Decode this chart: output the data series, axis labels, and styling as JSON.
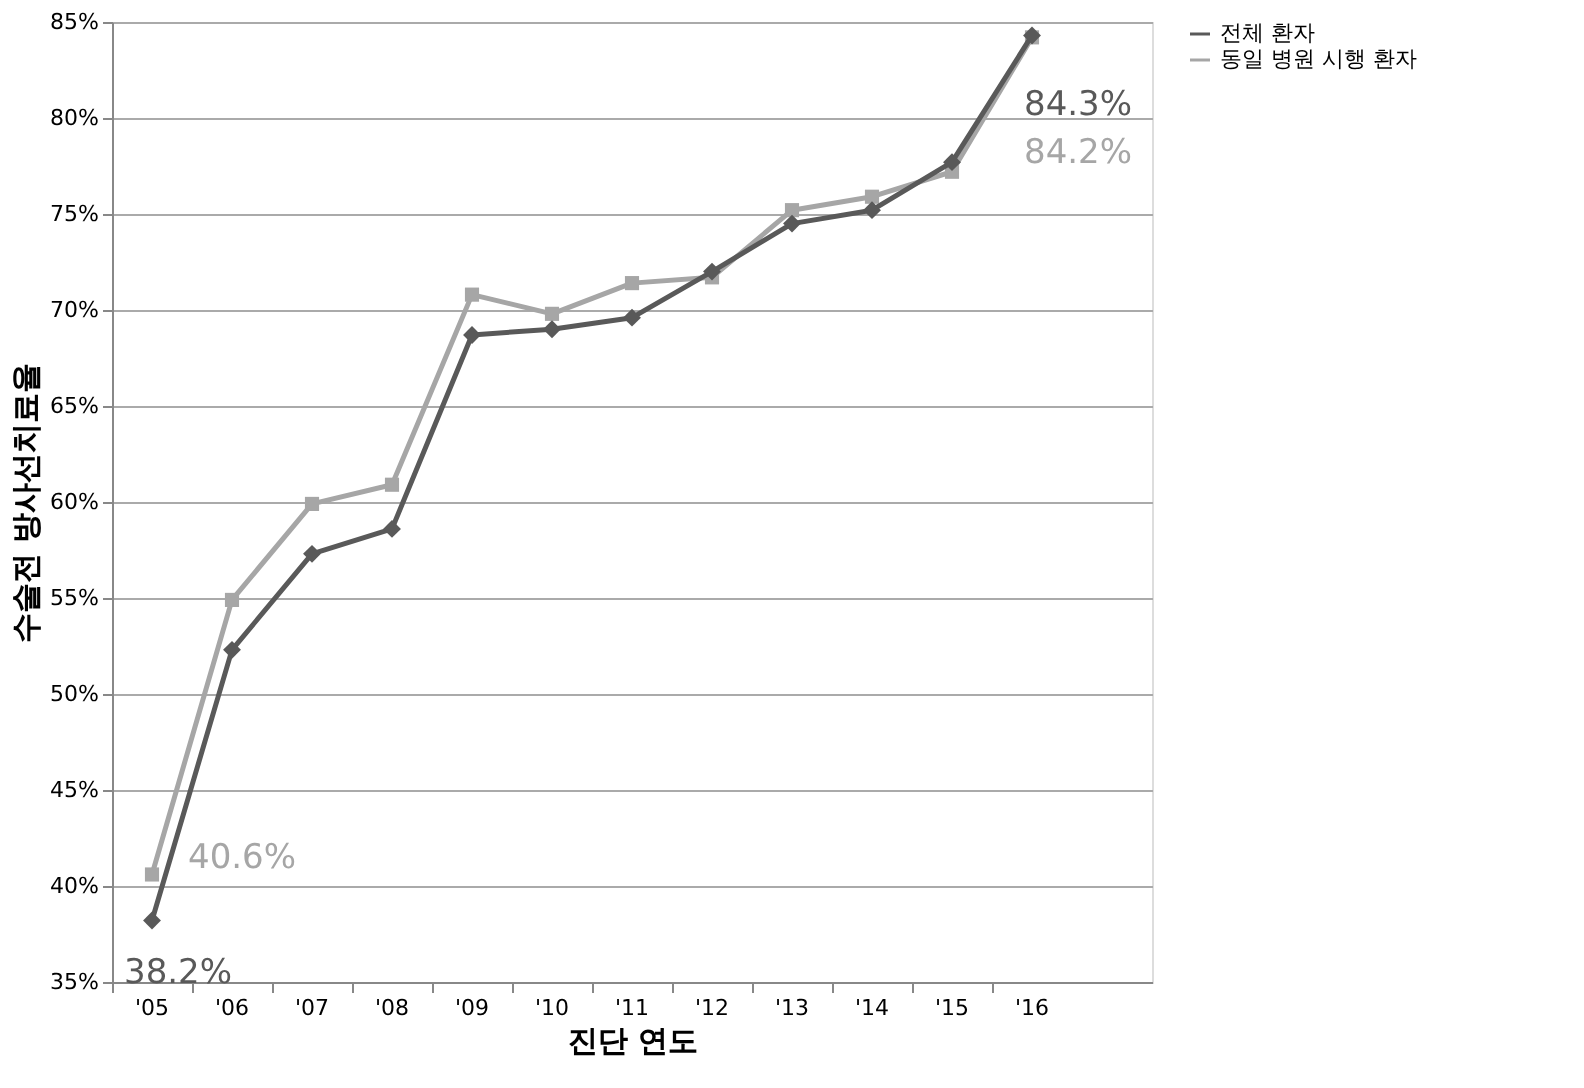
{
  "chart_data": {
    "type": "line",
    "xlabel": "진단 연도",
    "ylabel": "수술전 방사선치료율",
    "categories": [
      "'05",
      "'06",
      "'07",
      "'08",
      "'09",
      "'10",
      "'11",
      "'12",
      "'13",
      "'14",
      "'15",
      "'16"
    ],
    "series": [
      {
        "name": "전체 환자",
        "color": "#595959",
        "marker": "diamond",
        "values": [
          38.2,
          52.3,
          57.3,
          58.6,
          68.7,
          69.0,
          69.6,
          72.0,
          74.5,
          75.2,
          77.7,
          84.3
        ],
        "value_labels": [
          "38.2%",
          null,
          null,
          null,
          null,
          null,
          null,
          null,
          null,
          null,
          null,
          "84.3%"
        ]
      },
      {
        "name": "동일 병원 시행 환자",
        "color": "#a6a6a6",
        "marker": "square",
        "values": [
          40.6,
          54.9,
          59.9,
          60.9,
          70.8,
          69.8,
          71.4,
          71.7,
          75.2,
          75.9,
          77.2,
          84.2
        ],
        "value_labels": [
          "40.6%",
          null,
          null,
          null,
          null,
          null,
          null,
          null,
          null,
          null,
          null,
          "84.2%"
        ]
      }
    ],
    "ylim": [
      35,
      85
    ],
    "yticks": [
      {
        "value": 35,
        "label": "35%"
      },
      {
        "value": 40,
        "label": "40%"
      },
      {
        "value": 45,
        "label": "45%"
      },
      {
        "value": 50,
        "label": "50%"
      },
      {
        "value": 55,
        "label": "55%"
      },
      {
        "value": 60,
        "label": "60%"
      },
      {
        "value": 65,
        "label": "65%"
      },
      {
        "value": 70,
        "label": "70%"
      },
      {
        "value": 75,
        "label": "75%"
      },
      {
        "value": 80,
        "label": "80%"
      },
      {
        "value": 85,
        "label": "85%"
      }
    ],
    "grid": "y",
    "legend": "right",
    "line_style": "solid"
  }
}
